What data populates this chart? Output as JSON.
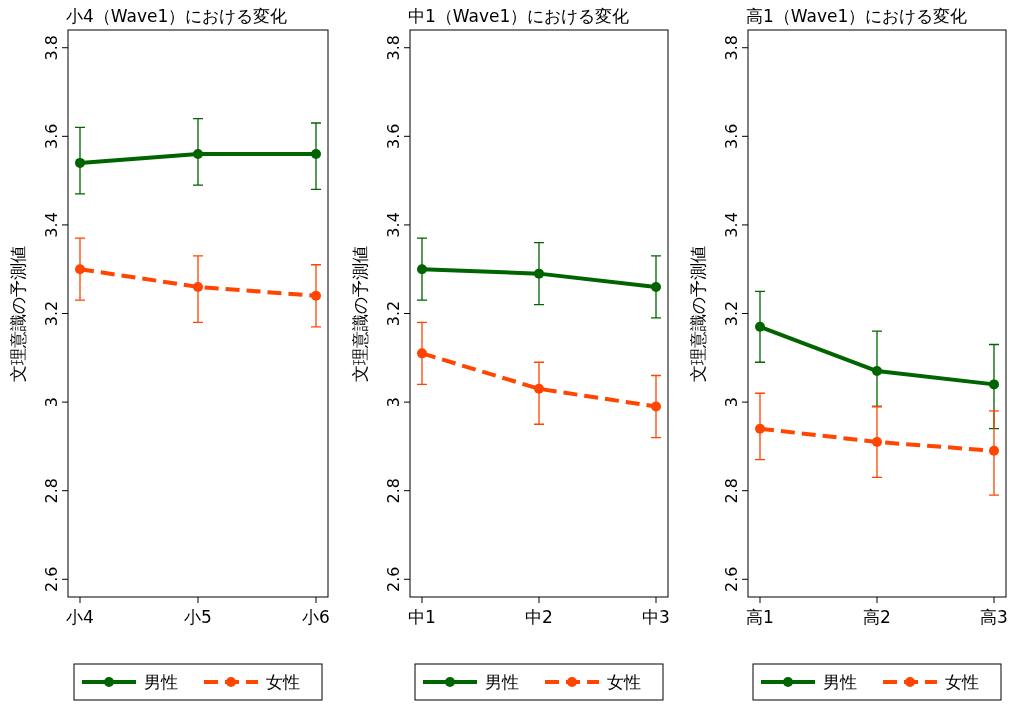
{
  "chart_data": [
    {
      "type": "line",
      "title": "小4（Wave1）における変化",
      "ylabel": "文理意識の予測値",
      "categories": [
        "小4",
        "小5",
        "小6"
      ],
      "ylim": [
        2.56,
        3.84
      ],
      "yticks": [
        {
          "value": 2.6,
          "label": "2.6"
        },
        {
          "value": 2.8,
          "label": "2.8"
        },
        {
          "value": 3,
          "label": "3"
        },
        {
          "value": 3.2,
          "label": "3.2"
        },
        {
          "value": 3.4,
          "label": "3.4"
        },
        {
          "value": 3.6,
          "label": "3.6"
        },
        {
          "value": 3.8,
          "label": "3.8"
        }
      ],
      "grid": false,
      "legend": "bottom",
      "marker": "circle",
      "series": [
        {
          "name": "男性",
          "color": "#006400",
          "line_style": "solid",
          "values": [
            3.54,
            3.56,
            3.56
          ],
          "errors": [
            [
              3.47,
              3.62
            ],
            [
              3.49,
              3.64
            ],
            [
              3.48,
              3.63
            ]
          ]
        },
        {
          "name": "女性",
          "color": "#ff4500",
          "line_style": "dashed",
          "values": [
            3.3,
            3.26,
            3.24
          ],
          "errors": [
            [
              3.23,
              3.37
            ],
            [
              3.18,
              3.33
            ],
            [
              3.17,
              3.31
            ]
          ]
        }
      ]
    },
    {
      "type": "line",
      "title": "中1（Wave1）における変化",
      "ylabel": "文理意識の予測値",
      "categories": [
        "中1",
        "中2",
        "中3"
      ],
      "ylim": [
        2.56,
        3.84
      ],
      "yticks": [
        {
          "value": 2.6,
          "label": "2.6"
        },
        {
          "value": 2.8,
          "label": "2.8"
        },
        {
          "value": 3,
          "label": "3"
        },
        {
          "value": 3.2,
          "label": "3.2"
        },
        {
          "value": 3.4,
          "label": "3.4"
        },
        {
          "value": 3.6,
          "label": "3.6"
        },
        {
          "value": 3.8,
          "label": "3.8"
        }
      ],
      "grid": false,
      "legend": "bottom",
      "marker": "circle",
      "series": [
        {
          "name": "男性",
          "color": "#006400",
          "line_style": "solid",
          "values": [
            3.3,
            3.29,
            3.26
          ],
          "errors": [
            [
              3.23,
              3.37
            ],
            [
              3.22,
              3.36
            ],
            [
              3.19,
              3.33
            ]
          ]
        },
        {
          "name": "女性",
          "color": "#ff4500",
          "line_style": "dashed",
          "values": [
            3.11,
            3.03,
            2.99
          ],
          "errors": [
            [
              3.04,
              3.18
            ],
            [
              2.95,
              3.09
            ],
            [
              2.92,
              3.06
            ]
          ]
        }
      ]
    },
    {
      "type": "line",
      "title": "高1（Wave1）における変化",
      "ylabel": "文理意識の予測値",
      "categories": [
        "高1",
        "高2",
        "高3"
      ],
      "ylim": [
        2.56,
        3.84
      ],
      "yticks": [
        {
          "value": 2.6,
          "label": "2.6"
        },
        {
          "value": 2.8,
          "label": "2.8"
        },
        {
          "value": 3,
          "label": "3"
        },
        {
          "value": 3.2,
          "label": "3.2"
        },
        {
          "value": 3.4,
          "label": "3.4"
        },
        {
          "value": 3.6,
          "label": "3.6"
        },
        {
          "value": 3.8,
          "label": "3.8"
        }
      ],
      "grid": false,
      "legend": "bottom",
      "marker": "circle",
      "series": [
        {
          "name": "男性",
          "color": "#006400",
          "line_style": "solid",
          "values": [
            3.17,
            3.07,
            3.04
          ],
          "errors": [
            [
              3.09,
              3.25
            ],
            [
              2.99,
              3.16
            ],
            [
              2.94,
              3.13
            ]
          ]
        },
        {
          "name": "女性",
          "color": "#ff4500",
          "line_style": "dashed",
          "values": [
            2.94,
            2.91,
            2.89
          ],
          "errors": [
            [
              2.87,
              3.02
            ],
            [
              2.83,
              2.99
            ],
            [
              2.79,
              2.98
            ]
          ]
        }
      ]
    }
  ]
}
